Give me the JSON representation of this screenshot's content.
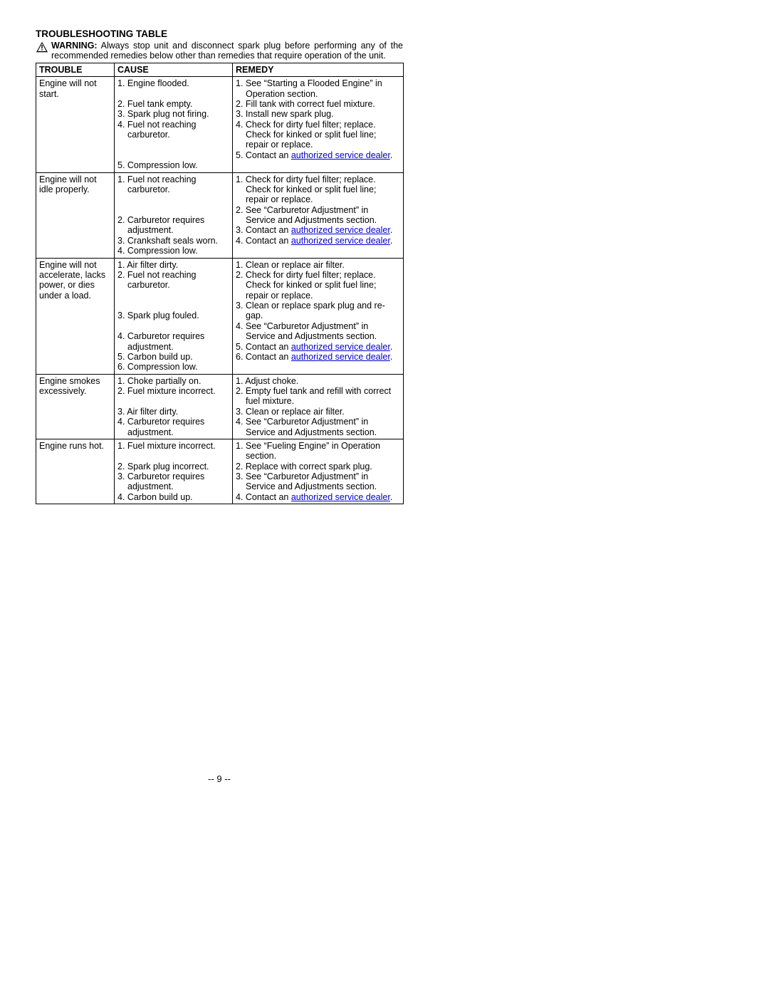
{
  "page": {
    "title": "TROUBLESHOOTING TABLE",
    "warning_label": "WARNING:",
    "warning_text": "Always stop unit and disconnect spark plug before performing any of the recommended remedies below other than remedies that require operation of the unit.",
    "page_number": "-- 9 --",
    "link_text": "authorized service dealer",
    "link_color": "#0000cc",
    "headers": {
      "trouble": "TROUBLE",
      "cause": "CAUSE",
      "remedy": "REMEDY"
    },
    "rows": [
      {
        "trouble": "Engine will not start.",
        "cause": [
          "1. Engine flooded.",
          "",
          "2. Fuel tank empty.",
          "3. Spark plug not firing.",
          "4. Fuel not reaching carburetor.",
          "",
          "",
          "5. Compression low."
        ],
        "remedy": [
          {
            "t": "1. See “Starting a Flooded Engine” in Operation section."
          },
          {
            "t": "2. Fill tank with correct fuel mixture."
          },
          {
            "t": "3. Install new spark plug."
          },
          {
            "t": "4. Check for dirty fuel filter; replace. Check for kinked or split fuel line; repair or replace."
          },
          {
            "t": "5. Contact an ",
            "link": true,
            "after": "."
          }
        ]
      },
      {
        "trouble": "Engine will not idle properly.",
        "cause": [
          "1. Fuel not reaching carburetor.",
          "",
          "",
          "2. Carburetor requires adjustment.",
          "3. Crankshaft seals worn.",
          "4. Compression low."
        ],
        "remedy": [
          {
            "t": "1. Check for dirty fuel filter; replace. Check for kinked or split fuel line; repair or replace."
          },
          {
            "t": "2. See “Carburetor Adjustment” in Service and Adjustments section."
          },
          {
            "t": "3. Contact an ",
            "link": true,
            "after": "."
          },
          {
            "t": "4. Contact an ",
            "link": true,
            "after": "."
          }
        ]
      },
      {
        "trouble": "Engine will not accelerate, lacks power, or dies under a load.",
        "cause": [
          "1. Air filter dirty.",
          "2. Fuel not reaching carburetor.",
          "",
          "",
          "3. Spark plug fouled.",
          "",
          "4. Carburetor requires adjustment.",
          "5. Carbon build up.",
          "6. Compression low."
        ],
        "remedy": [
          {
            "t": "1. Clean or replace air filter."
          },
          {
            "t": "2. Check for dirty fuel filter; replace. Check for kinked or split fuel line; repair or replace."
          },
          {
            "t": "3. Clean or replace spark plug and re-gap."
          },
          {
            "t": "4. See “Carburetor Adjustment” in Service and Adjustments section."
          },
          {
            "t": "5. Contact an ",
            "link": true,
            "after": "."
          },
          {
            "t": "6. Contact an ",
            "link": true,
            "after": "."
          }
        ]
      },
      {
        "trouble": "Engine smokes excessively.",
        "cause": [
          "1. Choke partially on.",
          "2. Fuel mixture incorrect.",
          "",
          "3. Air filter dirty.",
          "4. Carburetor requires adjustment."
        ],
        "remedy": [
          {
            "t": "1. Adjust choke."
          },
          {
            "t": "2. Empty fuel tank and refill with correct fuel mixture."
          },
          {
            "t": "3. Clean or replace air filter."
          },
          {
            "t": "4. See “Carburetor Adjustment” in Service and Adjustments section."
          }
        ]
      },
      {
        "trouble": "Engine runs hot.",
        "cause": [
          "1. Fuel mixture incorrect.",
          "",
          "2. Spark plug incorrect.",
          "3. Carburetor requires adjustment.",
          "4. Carbon build up."
        ],
        "remedy": [
          {
            "t": "1. See “Fueling Engine” in Operation section."
          },
          {
            "t": "2. Replace with correct spark plug."
          },
          {
            "t": "3. See “Carburetor Adjustment” in Service and Adjustments section."
          },
          {
            "t": "4. Contact an ",
            "link": true,
            "after": "."
          }
        ]
      }
    ]
  }
}
